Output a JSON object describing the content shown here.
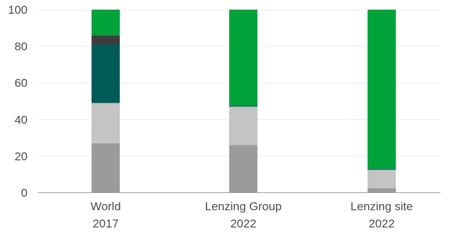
{
  "chart_data": {
    "type": "bar",
    "stacked": true,
    "title": "",
    "xlabel": "",
    "ylabel": "",
    "ylim": [
      0,
      100
    ],
    "yticks": [
      0,
      20,
      40,
      60,
      80,
      100
    ],
    "grid": true,
    "legend": "none",
    "categories": [
      {
        "line1": "World",
        "line2": "2017"
      },
      {
        "line1": "Lenzing Group",
        "line2": "2022"
      },
      {
        "line1": "Lenzing site",
        "line2": "2022"
      }
    ],
    "series": [
      {
        "color": "#9b9b9b",
        "values": [
          27,
          26,
          2.5
        ]
      },
      {
        "color": "#c4c4c4",
        "values": [
          22,
          21,
          10
        ]
      },
      {
        "color": "#005a58",
        "values": [
          32,
          0.6,
          0.6
        ]
      },
      {
        "color": "#3d3d3d",
        "values": [
          5,
          0,
          0
        ]
      },
      {
        "color": "#00a33a",
        "values": [
          14,
          52.4,
          86.9
        ]
      }
    ]
  }
}
